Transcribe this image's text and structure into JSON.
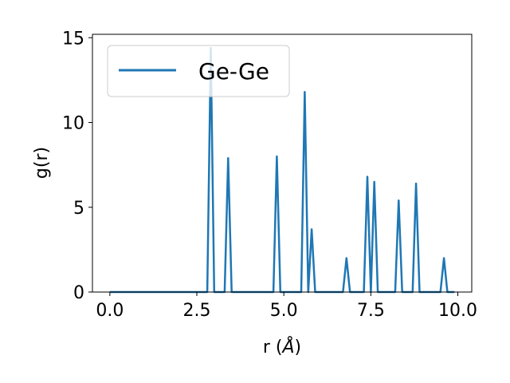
{
  "chart_data": {
    "type": "line",
    "title": "",
    "xlabel": "r",
    "xlabel_unit": "Å",
    "ylabel": "g(r)",
    "xlim": [
      -0.5,
      10.4
    ],
    "ylim": [
      0,
      15.2
    ],
    "xticks": [
      0.0,
      2.5,
      5.0,
      7.5,
      10.0
    ],
    "xtick_labels": [
      "0.0",
      "2.5",
      "5.0",
      "7.5",
      "10.0"
    ],
    "yticks": [
      0,
      5,
      10,
      15
    ],
    "ytick_labels": [
      "0",
      "5",
      "10",
      "15"
    ],
    "grid": false,
    "legend_position": "top-left",
    "series": [
      {
        "name": "Ge-Ge",
        "color": "#1f77b4",
        "x": [
          0.0,
          2.8,
          2.9,
          3.0,
          3.3,
          3.4,
          3.5,
          4.7,
          4.8,
          4.9,
          5.5,
          5.6,
          5.7,
          5.8,
          5.9,
          6.7,
          6.8,
          6.9,
          7.3,
          7.4,
          7.5,
          7.6,
          7.7,
          8.2,
          8.3,
          8.4,
          8.7,
          8.8,
          8.9,
          9.5,
          9.6,
          9.7,
          9.9
        ],
        "y": [
          0.0,
          0.0,
          14.4,
          0.0,
          0.0,
          7.9,
          0.0,
          0.0,
          8.0,
          0.0,
          0.0,
          11.8,
          0.0,
          3.7,
          0.0,
          0.0,
          2.0,
          0.0,
          0.0,
          6.8,
          0.0,
          6.5,
          0.0,
          0.0,
          5.4,
          0.0,
          0.0,
          6.4,
          0.0,
          0.0,
          2.0,
          0.0,
          0.0
        ]
      }
    ]
  }
}
